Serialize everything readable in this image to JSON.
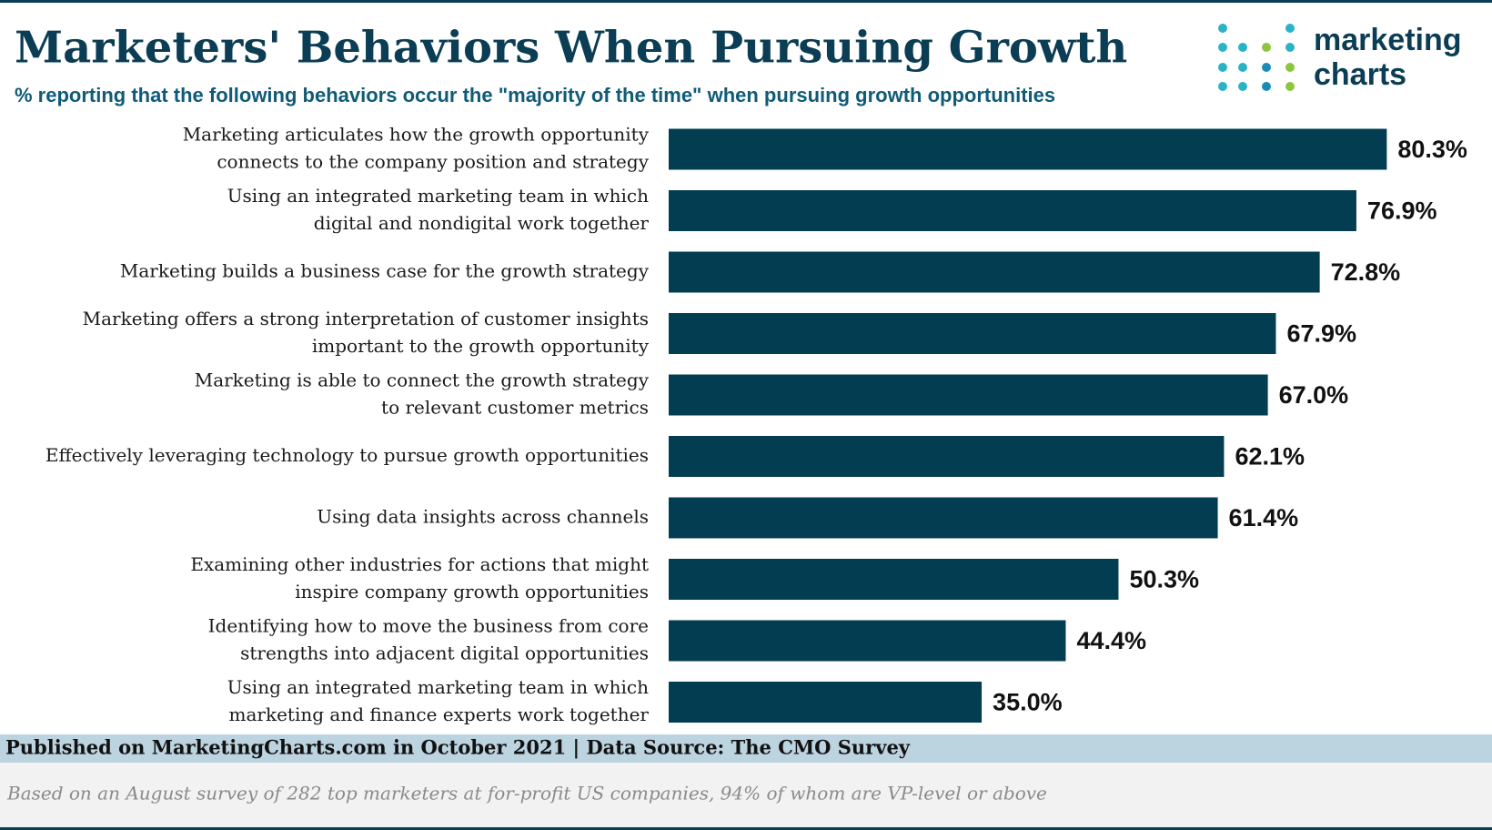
{
  "chart_data": {
    "type": "bar",
    "orientation": "horizontal",
    "title": "Marketers' Behaviors When Pursuing Growth",
    "subtitle": "% reporting that the following behaviors occur the \"majority of the time\" when pursuing growth opportunities",
    "categories": [
      [
        "Marketing articulates how the growth opportunity",
        "connects to the company position and strategy"
      ],
      [
        "Using an integrated marketing team in which",
        "digital and nondigital work together"
      ],
      [
        "Marketing builds a business case for the growth strategy"
      ],
      [
        "Marketing offers a strong interpretation of customer insights",
        "important to the growth opportunity"
      ],
      [
        "Marketing is able to connect the growth strategy",
        "to relevant customer metrics"
      ],
      [
        "Effectively leveraging technology to pursue growth opportunities"
      ],
      [
        "Using data insights across channels"
      ],
      [
        "Examining other industries for actions that might",
        "inspire company growth opportunities"
      ],
      [
        "Identifying how to move the business from core",
        "strengths into adjacent digital opportunities"
      ],
      [
        "Using an integrated marketing team in which",
        "marketing and finance experts work together"
      ]
    ],
    "values": [
      80.3,
      76.9,
      72.8,
      67.9,
      67.0,
      62.1,
      61.4,
      50.3,
      44.4,
      35.0
    ],
    "value_labels": [
      "80.3%",
      "76.9%",
      "72.8%",
      "67.9%",
      "67.0%",
      "62.1%",
      "61.4%",
      "50.3%",
      "44.4%",
      "35.0%"
    ],
    "color": "#033d52"
  },
  "logo": [
    "marketing",
    "charts"
  ],
  "footer": {
    "source": "Published on MarketingCharts.com in October 2021 | Data Source: The CMO Survey",
    "note": "Based on an August survey of 282 top marketers at for-profit US companies, 94% of whom are VP-level or above"
  }
}
